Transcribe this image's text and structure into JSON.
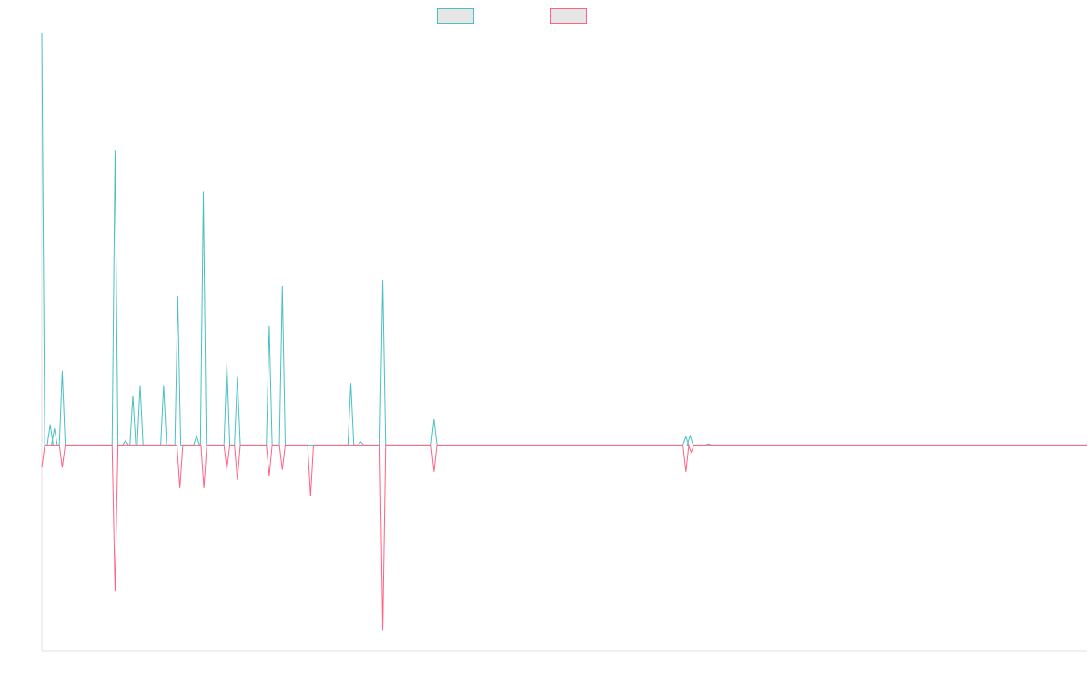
{
  "chart_data": {
    "type": "line",
    "title": "",
    "xlabel": "",
    "ylabel": "",
    "grid": false,
    "legend": "top-center",
    "ylim": [
      -1000,
      2000
    ],
    "series": [
      {
        "color": "#4bc0c0",
        "legend_fill": "#e6e6e6",
        "values": [
          2000,
          100,
          80,
          0,
          0,
          0,
          360,
          0,
          0,
          0,
          0,
          0,
          0,
          0,
          1430,
          0,
          0,
          20,
          0,
          240,
          0,
          290,
          0,
          0,
          0,
          0,
          0,
          0,
          0,
          0,
          0,
          0,
          0,
          0,
          0,
          0,
          0,
          0,
          0,
          0,
          0,
          0,
          0,
          0,
          0,
          0,
          0,
          0,
          0,
          0,
          0,
          0,
          0,
          0,
          0,
          0,
          0,
          0,
          0,
          0
        ],
        "peaks": [
          [
            0.0,
            2000
          ],
          [
            1.6,
            100
          ],
          [
            2.4,
            80
          ],
          [
            3.9,
            360
          ],
          [
            14.0,
            1430
          ],
          [
            16.0,
            20
          ],
          [
            17.4,
            240
          ],
          [
            18.8,
            290
          ],
          [
            23.3,
            290
          ],
          [
            26.0,
            720
          ],
          [
            29.6,
            45
          ],
          [
            30.9,
            1230
          ],
          [
            35.4,
            400
          ],
          [
            37.4,
            330
          ],
          [
            43.5,
            580
          ],
          [
            46.0,
            770
          ],
          [
            59.1,
            300
          ],
          [
            61.0,
            15
          ],
          [
            65.2,
            800
          ],
          [
            75.0,
            125
          ],
          [
            123.2,
            40
          ],
          [
            124.0,
            45
          ],
          [
            127.5,
            5
          ]
        ]
      },
      {
        "color": "#ff6384",
        "legend_fill": "#e6e6e6",
        "peaks": [
          [
            0.0,
            -110
          ],
          [
            3.9,
            -110
          ],
          [
            14.0,
            -710
          ],
          [
            26.4,
            -210
          ],
          [
            31.0,
            -210
          ],
          [
            35.4,
            -120
          ],
          [
            37.4,
            -170
          ],
          [
            43.5,
            -150
          ],
          [
            46.0,
            -120
          ],
          [
            51.4,
            -250
          ],
          [
            65.2,
            -900
          ],
          [
            75.0,
            -130
          ],
          [
            123.2,
            -130
          ],
          [
            124.2,
            -35
          ]
        ]
      }
    ],
    "x_extent": [
      0,
      200
    ]
  }
}
